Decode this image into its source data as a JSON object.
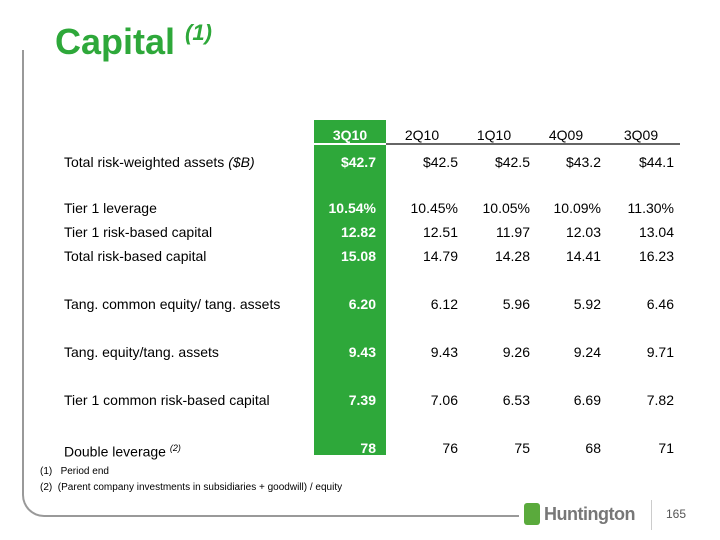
{
  "title": "Capital",
  "title_note": "(1)",
  "columns": [
    "3Q10",
    "2Q10",
    "1Q10",
    "4Q09",
    "3Q09"
  ],
  "rows": [
    {
      "label": "Total risk-weighted assets",
      "label_italic": "($B)",
      "values": [
        "$42.7",
        "$42.5",
        "$42.5",
        "$43.2",
        "$44.1"
      ]
    },
    {
      "label": "Tier 1 leverage",
      "values": [
        "10.54%",
        "10.45%",
        "10.05%",
        "10.09%",
        "11.30%"
      ]
    },
    {
      "label": "Tier 1 risk-based capital",
      "values": [
        "12.82",
        "12.51",
        "11.97",
        "12.03",
        "13.04"
      ]
    },
    {
      "label": "Total risk-based capital",
      "values": [
        "15.08",
        "14.79",
        "14.28",
        "14.41",
        "16.23"
      ]
    },
    {
      "label": "Tang. common equity/ tang. assets",
      "values": [
        "6.20",
        "6.12",
        "5.96",
        "5.92",
        "6.46"
      ]
    },
    {
      "label": "Tang. equity/tang. assets",
      "values": [
        "9.43",
        "9.43",
        "9.26",
        "9.24",
        "9.71"
      ]
    },
    {
      "label": "Tier 1 common risk-based capital",
      "values": [
        "7.39",
        "7.06",
        "6.53",
        "6.69",
        "7.82"
      ]
    },
    {
      "label": "Double leverage",
      "label_note": "(2)",
      "values": [
        "78",
        "76",
        "75",
        "68",
        "71"
      ]
    }
  ],
  "footnotes": [
    {
      "num": "(1)",
      "text": "Period end"
    },
    {
      "num": "(2)",
      "text": "(Parent company investments in subsidiaries + goodwill) / equity"
    }
  ],
  "logo": "Huntington",
  "page": "165",
  "colors": {
    "green": "#2ea83a"
  }
}
